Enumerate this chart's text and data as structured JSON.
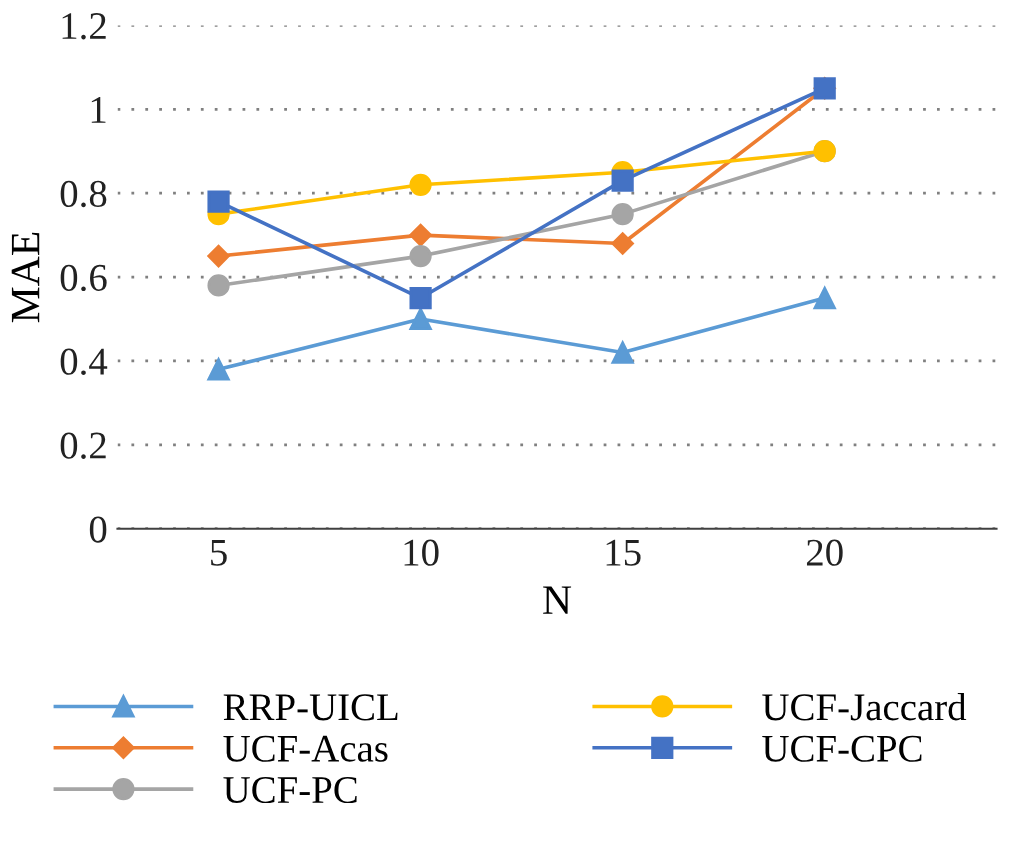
{
  "chart_data": {
    "type": "line",
    "xlabel": "N",
    "ylabel": "MAE",
    "categories": [
      "5",
      "10",
      "15",
      "20"
    ],
    "ylim": [
      0,
      1.2
    ],
    "yticks": [
      0,
      0.2,
      0.4,
      0.6,
      0.8,
      1,
      1.2
    ],
    "grid": "y",
    "legend": "bottom",
    "series": [
      {
        "name": "RRP-UICL",
        "color": "#5b9bd5",
        "marker": "triangle",
        "values": [
          0.38,
          0.5,
          0.42,
          0.55
        ]
      },
      {
        "name": "UCF-Acas",
        "color": "#ed7d31",
        "marker": "diamond",
        "values": [
          0.65,
          0.7,
          0.68,
          1.05
        ]
      },
      {
        "name": "UCF-PC",
        "color": "#a5a5a5",
        "marker": "circle",
        "values": [
          0.58,
          0.65,
          0.75,
          0.9
        ]
      },
      {
        "name": "UCF-Jaccard",
        "color": "#ffc000",
        "marker": "circle",
        "values": [
          0.75,
          0.82,
          0.85,
          0.9
        ]
      },
      {
        "name": "UCF-CPC",
        "color": "#4472c4",
        "marker": "square",
        "values": [
          0.78,
          0.55,
          0.83,
          1.05
        ]
      }
    ]
  }
}
